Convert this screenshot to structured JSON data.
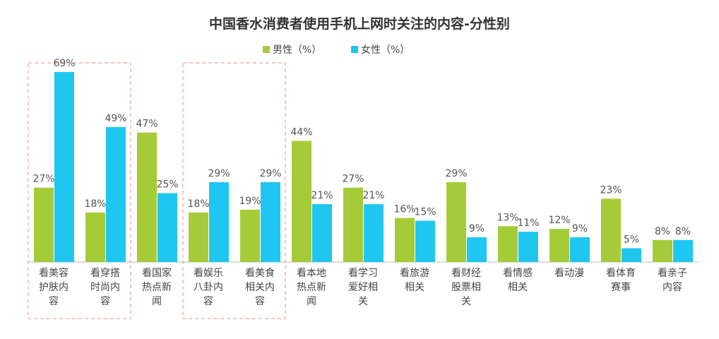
{
  "chart_data": {
    "type": "bar",
    "title": "中国香水消费者使用手机上网时关注的内容-分性别",
    "xlabel": "",
    "ylabel": "",
    "ylim": [
      0,
      75
    ],
    "grid": false,
    "legend_position": "top-center",
    "categories": [
      "看美容护肤内容",
      "看穿搭时尚内容",
      "看国家热点新闻",
      "看娱乐八卦内容",
      "看美食相关内容",
      "看本地热点新闻",
      "看学习爱好相关",
      "看旅游相关",
      "看财经股票相关",
      "看情感相关",
      "看动漫",
      "看体育赛事",
      "看亲子内容"
    ],
    "category_lines": [
      [
        "看美容",
        "护肤内",
        "容"
      ],
      [
        "看穿搭",
        "时尚内",
        "容"
      ],
      [
        "看国家",
        "热点新",
        "闻"
      ],
      [
        "看娱乐",
        "八卦内",
        "容"
      ],
      [
        "看美食",
        "相关内",
        "容"
      ],
      [
        "看本地",
        "热点新",
        "闻"
      ],
      [
        "看学习",
        "爱好相",
        "关"
      ],
      [
        "看旅游",
        "相关"
      ],
      [
        "看财经",
        "股票相",
        "关"
      ],
      [
        "看情感",
        "相关"
      ],
      [
        "看动漫"
      ],
      [
        "看体育",
        "赛事"
      ],
      [
        "看亲子",
        "内容"
      ]
    ],
    "series": [
      {
        "name": "男性（%）",
        "color": "#a6cb38",
        "values": [
          27,
          18,
          47,
          18,
          19,
          44,
          27,
          16,
          29,
          13,
          12,
          23,
          8
        ]
      },
      {
        "name": "女性（%）",
        "color": "#1fc6ef",
        "values": [
          69,
          49,
          25,
          29,
          29,
          21,
          21,
          15,
          9,
          11,
          9,
          5,
          8
        ]
      }
    ],
    "highlight_groups": [
      [
        0,
        1
      ],
      [
        3,
        4
      ]
    ],
    "highlight_color": "#f0a0a0"
  }
}
